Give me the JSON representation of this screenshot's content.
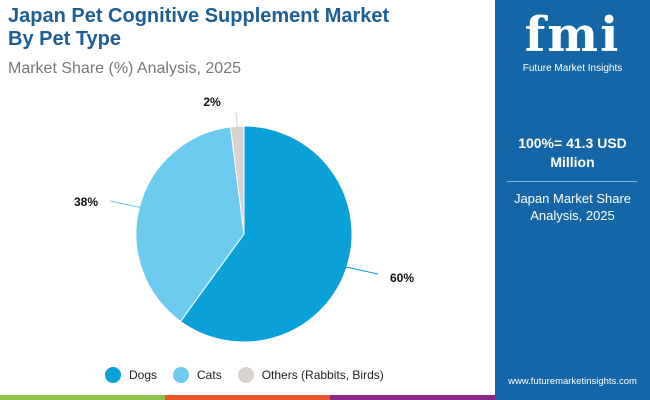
{
  "header": {
    "title_line1": "Japan Pet Cognitive Supplement Market",
    "title_line2": "By Pet Type",
    "subtitle": "Market Share (%) Analysis, 2025"
  },
  "sidebar": {
    "logo_text": "fmi",
    "logo_caption": "Future Market Insights",
    "total": "100%= 41.3 USD Million",
    "description": "Japan Market Share Analysis, 2025",
    "url": "www.futuremarketinsights.com"
  },
  "chart_data": {
    "type": "pie",
    "categories": [
      "Dogs",
      "Cats",
      "Others (Rabbits, Birds)"
    ],
    "values": [
      60,
      38,
      2
    ],
    "labels": [
      "60%",
      "38%",
      "2%"
    ],
    "colors": [
      "#0aa0d8",
      "#6dcbf0",
      "#d9d3cf"
    ],
    "legend_placement": "bottom"
  },
  "colors": {
    "brand": "#1466a6",
    "title": "#1b5f96",
    "stripe": [
      "#8cc14a",
      "#e8562a",
      "#8a2a88"
    ]
  }
}
